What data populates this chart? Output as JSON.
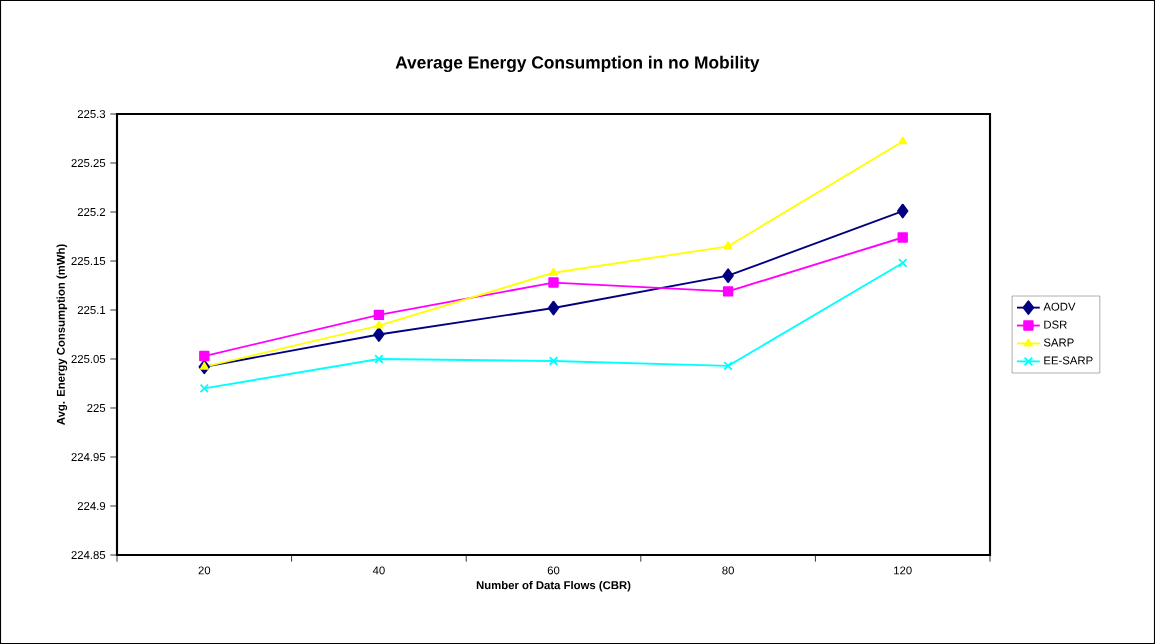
{
  "chart_data": {
    "type": "line",
    "title": "Average Energy Consumption in no Mobility",
    "xlabel": "Number of Data Flows (CBR)",
    "ylabel": "Avg. Energy Consumption (mWh)",
    "categories": [
      "20",
      "40",
      "60",
      "80",
      "120"
    ],
    "series": [
      {
        "name": "AODV",
        "color": "#000080",
        "marker": "diamond",
        "values": [
          225.042,
          225.075,
          225.102,
          225.135,
          225.201
        ]
      },
      {
        "name": "DSR",
        "color": "#ff00ff",
        "marker": "square",
        "values": [
          225.053,
          225.095,
          225.128,
          225.119,
          225.174
        ]
      },
      {
        "name": "SARP",
        "color": "#ffff00",
        "marker": "triangle",
        "values": [
          225.042,
          225.084,
          225.138,
          225.165,
          225.272
        ]
      },
      {
        "name": "EE-SARP",
        "color": "#00ffff",
        "marker": "cross",
        "values": [
          225.02,
          225.05,
          225.048,
          225.043,
          225.148
        ]
      }
    ],
    "ylim": [
      224.85,
      225.3
    ],
    "yticks": [
      224.85,
      224.9,
      224.95,
      225,
      225.05,
      225.1,
      225.15,
      225.2,
      225.25,
      225.3
    ],
    "grid": false,
    "legend": "right",
    "line_style": "solid"
  }
}
